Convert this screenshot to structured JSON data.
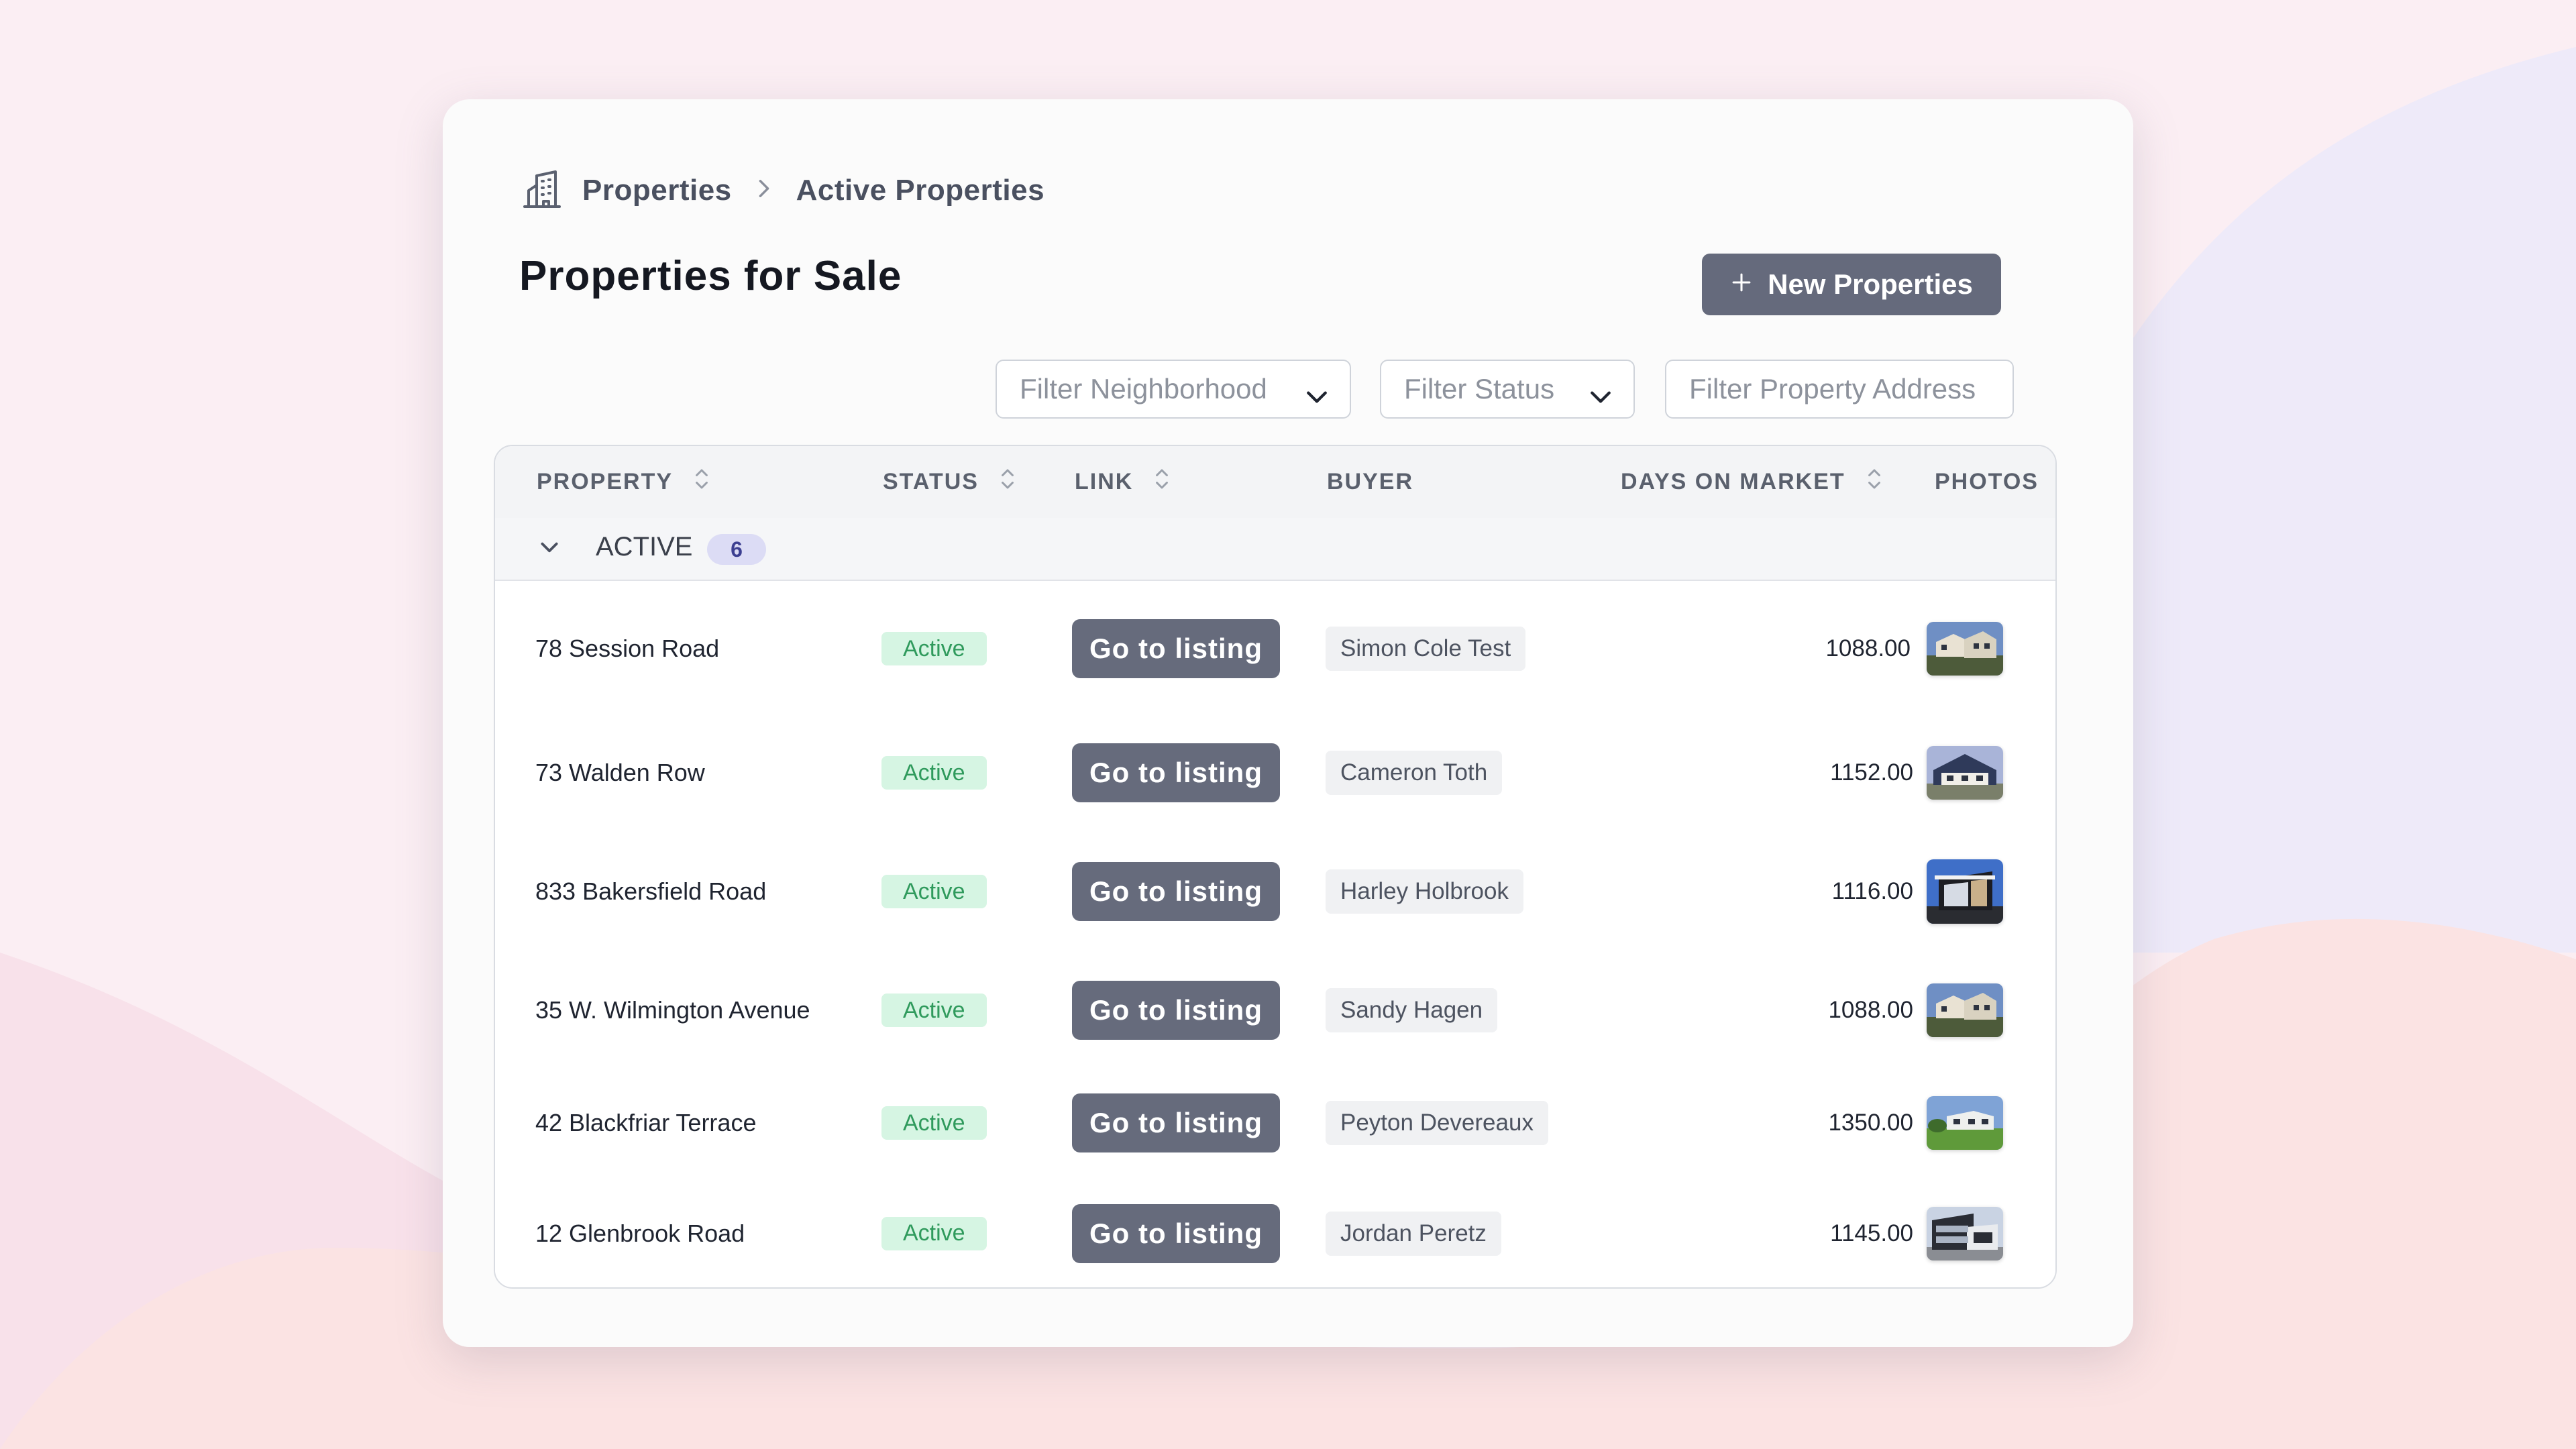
{
  "breadcrumb": {
    "items": [
      "Properties",
      "Active Properties"
    ]
  },
  "page": {
    "title": "Properties for Sale",
    "new_button_label": "New Properties"
  },
  "filters": {
    "neighborhood_placeholder": "Filter Neighborhood",
    "status_placeholder": "Filter Status",
    "address_placeholder": "Filter Property Address"
  },
  "table": {
    "headers": {
      "property": "PROPERTY",
      "status": "STATUS",
      "link": "LINK",
      "buyer": "BUYER",
      "days_on_market": "DAYS ON MARKET",
      "photos": "PHOTOS"
    },
    "group": {
      "label": "ACTIVE",
      "count": "6"
    },
    "rows": [
      {
        "address": "78 Session Road",
        "status": "Active",
        "link_label": "Go to listing",
        "buyer": "Simon Cole Test",
        "days": "1088.00",
        "photo_icon": "house-photo-1"
      },
      {
        "address": "73 Walden Row",
        "status": "Active",
        "link_label": "Go to listing",
        "buyer": "Cameron Toth",
        "days": "1152.00",
        "photo_icon": "house-photo-2"
      },
      {
        "address": "833 Bakersfield Road",
        "status": "Active",
        "link_label": "Go to listing",
        "buyer": "Harley Holbrook",
        "days": "1116.00",
        "photo_icon": "house-photo-3"
      },
      {
        "address": "35 W. Wilmington Avenue",
        "status": "Active",
        "link_label": "Go to listing",
        "buyer": "Sandy Hagen",
        "days": "1088.00",
        "photo_icon": "house-photo-4"
      },
      {
        "address": "42 Blackfriar Terrace",
        "status": "Active",
        "link_label": "Go to listing",
        "buyer": "Peyton Devereaux",
        "days": "1350.00",
        "photo_icon": "house-photo-5"
      },
      {
        "address": "12 Glenbrook Road",
        "status": "Active",
        "link_label": "Go to listing",
        "buyer": "Jordan Peretz",
        "days": "1145.00",
        "photo_icon": "house-photo-6"
      }
    ]
  },
  "colors": {
    "button": "#656a7c",
    "active_badge_bg": "#d6f5e3",
    "active_badge_text": "#2f9a5c",
    "count_badge_bg": "#dcdcf5"
  }
}
